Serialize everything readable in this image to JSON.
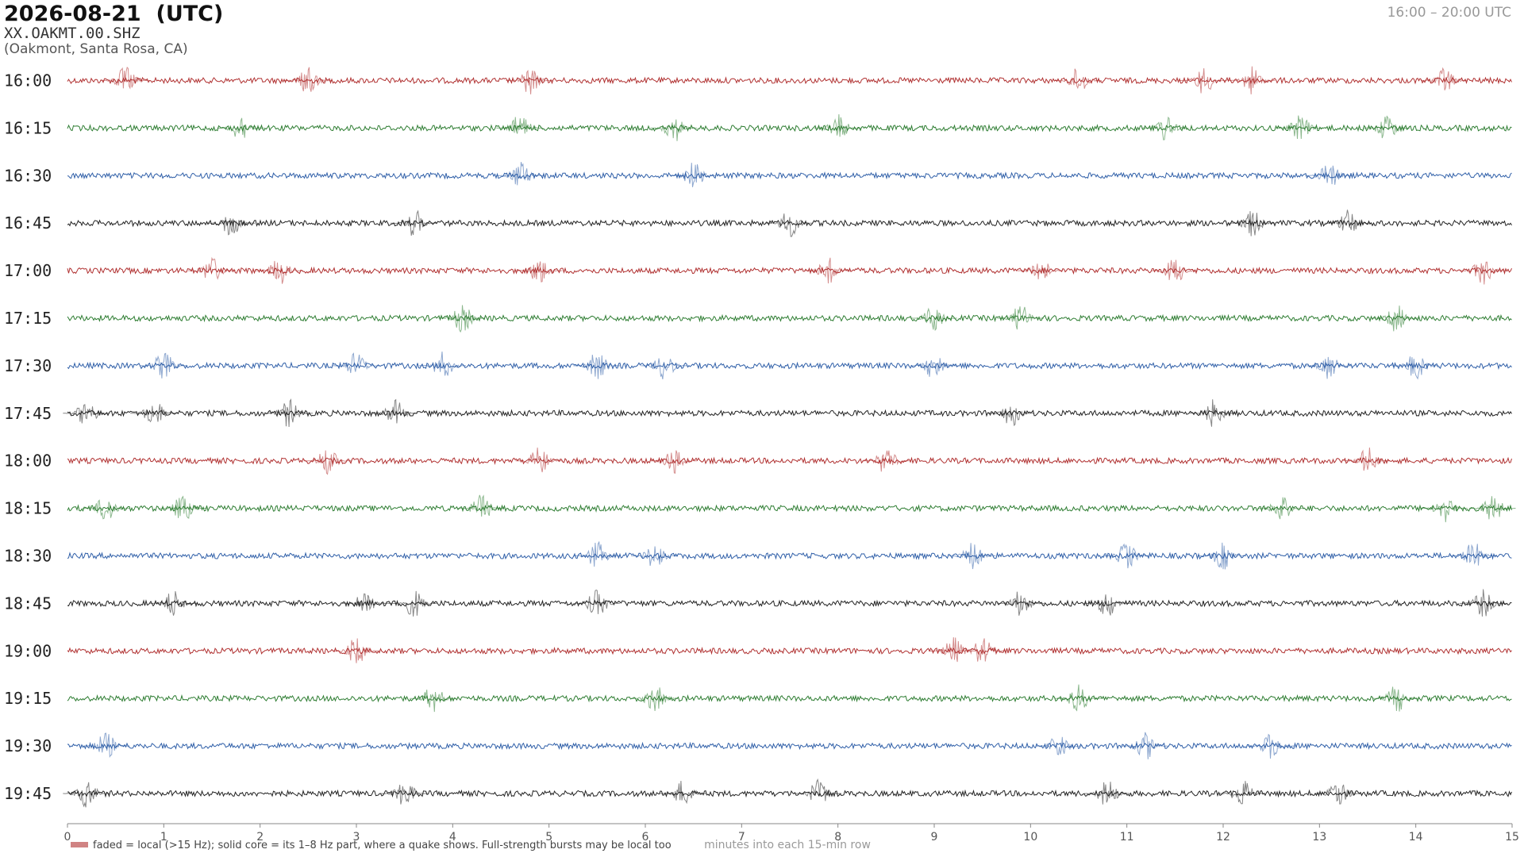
{
  "chart_data": {
    "type": "helicorder",
    "title": "2026-08-21  (UTC)",
    "station": "XX.OAKMT.00.SHZ",
    "location": "(Oakmont, Santa Rosa, CA)",
    "time_range": "16:00 – 20:00 UTC",
    "xlabel": "minutes into each 15-min row",
    "legend": "faded = local (>15 Hz); solid core = its 1–8 Hz part, where a quake shows. Full-strength bursts may be local too",
    "xlim": [
      0,
      15
    ],
    "xticks": [
      0,
      1,
      2,
      3,
      4,
      5,
      6,
      7,
      8,
      9,
      10,
      11,
      12,
      13,
      14,
      15
    ],
    "rows": [
      {
        "name": "16:00",
        "color": "#b03030",
        "events": [
          0.6,
          2.5,
          4.8,
          10.5,
          11.8,
          12.3,
          14.3
        ]
      },
      {
        "name": "16:15",
        "color": "#2e7d32",
        "events": [
          1.8,
          4.7,
          6.3,
          8.0,
          11.4,
          12.8,
          13.7
        ]
      },
      {
        "name": "16:30",
        "color": "#2f5fa8",
        "events": [
          4.7,
          6.5,
          13.1
        ]
      },
      {
        "name": "16:45",
        "color": "#222222",
        "events": [
          1.7,
          3.6,
          7.5,
          12.3,
          13.3
        ]
      },
      {
        "name": "17:00",
        "color": "#b03030",
        "events": [
          1.5,
          2.2,
          4.9,
          7.9,
          10.1,
          11.5,
          14.7
        ]
      },
      {
        "name": "17:15",
        "color": "#2e7d32",
        "events": [
          4.1,
          9.0,
          9.9,
          13.8
        ]
      },
      {
        "name": "17:30",
        "color": "#2f5fa8",
        "events": [
          1.0,
          3.0,
          3.9,
          5.5,
          6.2,
          9.0,
          13.1,
          14.0
        ]
      },
      {
        "name": "17:45",
        "color": "#222222",
        "events": [
          0.2,
          0.9,
          2.3,
          3.4,
          9.8,
          11.9
        ]
      },
      {
        "name": "18:00",
        "color": "#b03030",
        "events": [
          2.7,
          4.9,
          6.3,
          8.5,
          13.5
        ]
      },
      {
        "name": "18:15",
        "color": "#2e7d32",
        "events": [
          0.4,
          1.2,
          4.3,
          12.6,
          14.3,
          14.8
        ]
      },
      {
        "name": "18:30",
        "color": "#2f5fa8",
        "events": [
          5.5,
          6.1,
          9.4,
          11.0,
          12.0,
          14.6
        ]
      },
      {
        "name": "18:45",
        "color": "#222222",
        "events": [
          1.1,
          3.1,
          3.6,
          5.5,
          9.9,
          10.8,
          14.7
        ]
      },
      {
        "name": "19:00",
        "color": "#b03030",
        "events": [
          3.0,
          9.2,
          9.5
        ]
      },
      {
        "name": "19:15",
        "color": "#2e7d32",
        "events": [
          3.8,
          6.1,
          10.5,
          13.8
        ]
      },
      {
        "name": "19:30",
        "color": "#2f5fa8",
        "events": [
          0.4,
          10.3,
          11.2,
          12.5
        ]
      },
      {
        "name": "19:45",
        "color": "#222222",
        "events": [
          0.2,
          3.5,
          6.4,
          7.8,
          10.8,
          12.2,
          13.2
        ]
      }
    ]
  }
}
